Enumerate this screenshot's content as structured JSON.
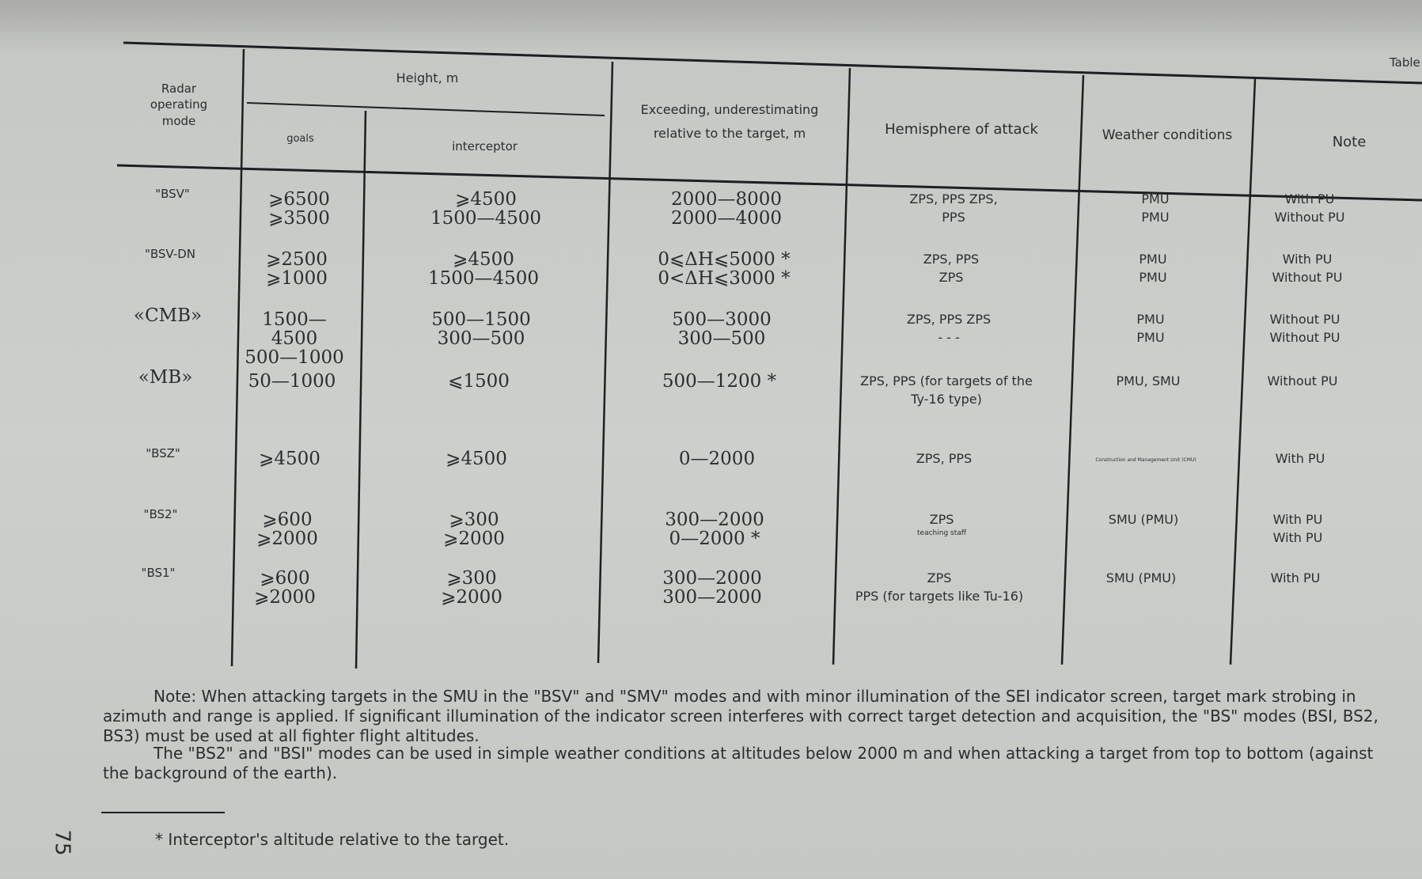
{
  "header": {
    "table_label": "Table"
  },
  "table": {
    "columns": [
      "Radar operating mode",
      "Height, m",
      "Exceeding, underestimating relative to the target, m",
      "Hemisphere of attack",
      "Weather conditions",
      "Note"
    ],
    "subcolumns": [
      "goals",
      "interceptor"
    ],
    "rows": [
      [
        [
          "\"BSV\""
        ],
        [
          "⩾6500",
          "⩾3500"
        ],
        [
          "⩾4500",
          "1500—4500"
        ],
        [
          "2000—8000",
          "2000—4000"
        ],
        [
          "ZPS, PPS ZPS,",
          "PPS"
        ],
        [
          "PMU",
          "PMU"
        ],
        [
          "With PU",
          "Without PU"
        ]
      ],
      [
        [
          "\"BSV-DN"
        ],
        [
          "⩾2500",
          "⩾1000"
        ],
        [
          "⩾4500",
          "1500—4500"
        ],
        [
          "0⩽ΔH⩽5000 *",
          "0<ΔH⩽3000 *"
        ],
        [
          "ZPS, PPS",
          "ZPS"
        ],
        [
          "PMU",
          "PMU"
        ],
        [
          "With PU",
          "Without PU"
        ]
      ],
      [
        [
          "«CMB»"
        ],
        [
          "1500—4500",
          "500—1000"
        ],
        [
          "500—1500",
          "300—500"
        ],
        [
          "500—3000",
          "300—500"
        ],
        [
          "ZPS, PPS ZPS",
          "- - -"
        ],
        [
          "PMU",
          "PMU"
        ],
        [
          "Without PU",
          "Without PU"
        ]
      ],
      [
        [
          "«MB»"
        ],
        [
          "50—1000"
        ],
        [
          "⩽1500"
        ],
        [
          "500—1200 *"
        ],
        [
          "ZPS, PPS (for targets of the Ty-16 type)"
        ],
        [
          "PMU, SMU"
        ],
        [
          "Without PU"
        ]
      ],
      [
        [
          "\"BSZ\""
        ],
        [
          "⩾4500"
        ],
        [
          "⩾4500"
        ],
        [
          "0—2000"
        ],
        [
          "ZPS, PPS"
        ],
        [
          "Construction and Management Unit (CMU)"
        ],
        [
          "With PU"
        ]
      ],
      [
        [
          "\"BS2\""
        ],
        [
          "⩾600",
          "⩾2000"
        ],
        [
          "⩾300",
          "⩾2000"
        ],
        [
          "300—2000",
          "0—2000 *"
        ],
        [
          "ZPS",
          "teaching staff"
        ],
        [
          "SMU (PMU)"
        ],
        [
          "With PU",
          "With PU"
        ]
      ],
      [
        [
          "\"BS1\""
        ],
        [
          "⩾600",
          "⩾2000"
        ],
        [
          "⩾300",
          "⩾2000"
        ],
        [
          "300—2000",
          "300—2000"
        ],
        [
          "ZPS",
          "PPS (for targets like Tu-16)"
        ],
        [
          "SMU (PMU)"
        ],
        [
          "With PU"
        ]
      ]
    ]
  },
  "notes": [
    "Note: When attacking targets in the SMU in the \"BSV\" and \"SMV\" modes and with minor illumination of the SEI indicator screen, target mark strobing in azimuth and range is applied. If significant illumination of the indicator screen interferes with correct target detection and acquisition, the \"BS\" modes (BSI, BS2, BS3) must be used at all fighter flight altitudes.",
    "The \"BS2\" and \"BSI\" modes can be used in simple weather conditions at altitudes below 2000 m and when attacking a target from top to bottom (against the background of the earth)."
  ],
  "footnote": "* Interceptor's altitude relative to the target.",
  "page_number": "75"
}
